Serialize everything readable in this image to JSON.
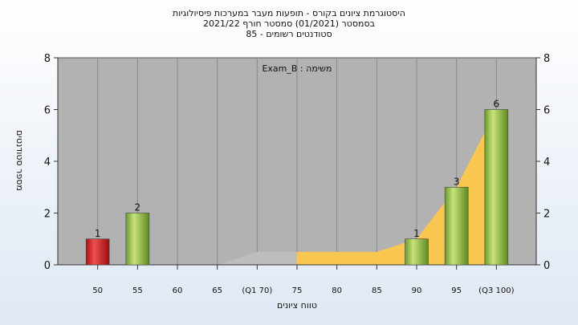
{
  "header": {
    "title_line1": "היסטוגרמת ציונים בקורס - תופעות מעבר במערכות פיסיולוגיות",
    "title_line2": "בסמסטר  (01/2021)  סמסטר חורף 2021/22",
    "title_line3": "סטודנטים רשומים - 85"
  },
  "annotation": "משימה : Exam_B",
  "chart_data": {
    "type": "bar",
    "title": "היסטוגרמת ציונים בקורס - תופעות מעבר במערכות פיסיולוגיות",
    "xlabel": "טווח ציונים",
    "ylabel": "מספר סטודנטים",
    "ylim": [
      0,
      8
    ],
    "yticks": [
      0,
      2,
      4,
      6,
      8
    ],
    "xlim": [
      45,
      105
    ],
    "xticks": [
      {
        "value": 50,
        "label": "50"
      },
      {
        "value": 55,
        "label": "55"
      },
      {
        "value": 60,
        "label": "60"
      },
      {
        "value": 65,
        "label": "65"
      },
      {
        "value": 70,
        "label": "(Q1 70)"
      },
      {
        "value": 75,
        "label": "75"
      },
      {
        "value": 80,
        "label": "80"
      },
      {
        "value": 85,
        "label": "85"
      },
      {
        "value": 90,
        "label": "90"
      },
      {
        "value": 95,
        "label": "95"
      },
      {
        "value": 100,
        "label": "(Q3 100)"
      }
    ],
    "bars": [
      {
        "x": 50,
        "value": 1,
        "label": "1",
        "color": "#d92020"
      },
      {
        "x": 55,
        "value": 2,
        "label": "2",
        "color": "#8fc040"
      },
      {
        "x": 90,
        "value": 1,
        "label": "1",
        "color": "#8fc040"
      },
      {
        "x": 95,
        "value": 3,
        "label": "3",
        "color": "#8fc040"
      },
      {
        "x": 100,
        "value": 6,
        "label": "6",
        "color": "#8fc040"
      }
    ],
    "background_area": {
      "gray": {
        "points": [
          [
            65,
            0
          ],
          [
            70,
            0.5
          ],
          [
            75,
            0.5
          ]
        ],
        "color": "#bdbdbd"
      },
      "yellow": {
        "points": [
          [
            75,
            0.5
          ],
          [
            85,
            0.5
          ],
          [
            90,
            1
          ],
          [
            95,
            3
          ],
          [
            100,
            6
          ]
        ],
        "color": "#f9c74f"
      }
    },
    "plot_background": "#b2b2b2",
    "grid": "vertical"
  }
}
